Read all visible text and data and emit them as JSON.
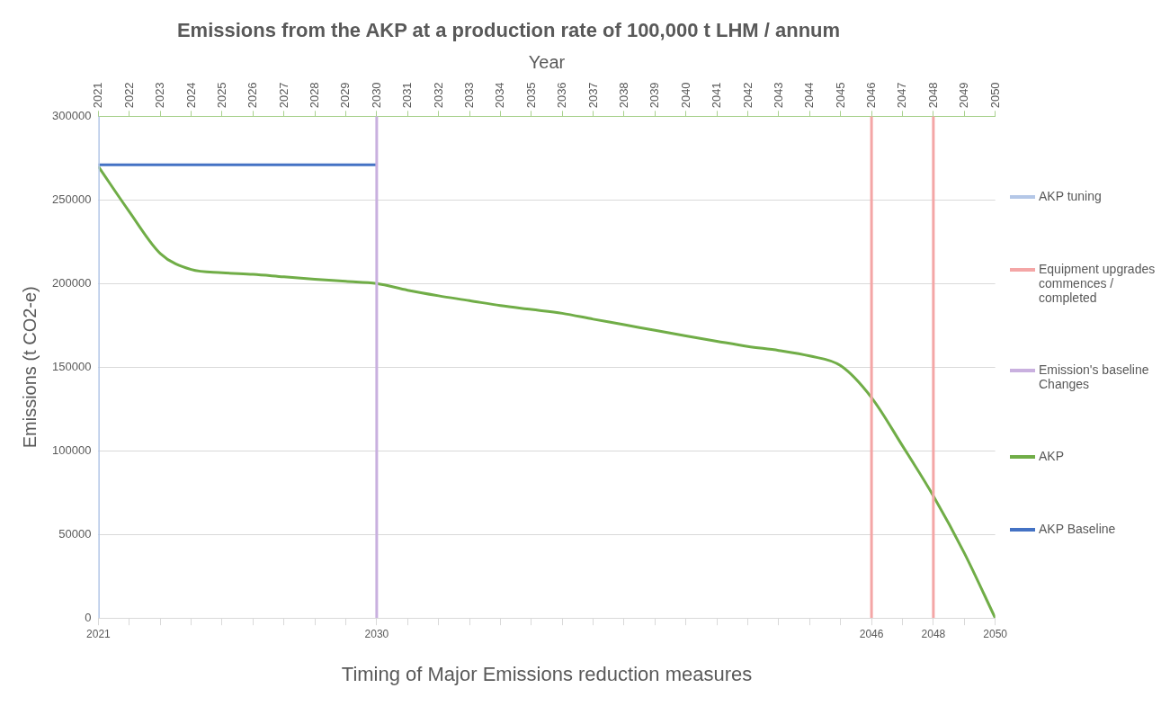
{
  "chart_data": {
    "type": "line",
    "title": "Emissions from the AKP at a production rate of 100,000 t LHM / annum",
    "xlabel": "Timing of Major Emissions reduction measures",
    "x2label": "Year",
    "ylabel": "Emissions (t CO2-e)",
    "xlim": [
      2021,
      2050
    ],
    "xticks": [
      2021,
      {
        "value": 2022,
        "label": null
      },
      {
        "value": 2023,
        "label": null
      },
      {
        "value": 2024,
        "label": null
      },
      {
        "value": 2025,
        "label": null
      },
      {
        "value": 2026,
        "label": null
      },
      {
        "value": 2027,
        "label": null
      },
      {
        "value": 2028,
        "label": null
      },
      {
        "value": 2029,
        "label": null
      },
      2030,
      {
        "value": 2031,
        "label": null
      },
      {
        "value": 2032,
        "label": null
      },
      {
        "value": 2033,
        "label": null
      },
      {
        "value": 2034,
        "label": null
      },
      {
        "value": 2035,
        "label": null
      },
      {
        "value": 2036,
        "label": null
      },
      {
        "value": 2037,
        "label": null
      },
      {
        "value": 2038,
        "label": null
      },
      {
        "value": 2039,
        "label": null
      },
      {
        "value": 2040,
        "label": null
      },
      {
        "value": 2041,
        "label": null
      },
      {
        "value": 2042,
        "label": null
      },
      {
        "value": 2043,
        "label": null
      },
      {
        "value": 2044,
        "label": null
      },
      {
        "value": 2045,
        "label": null
      },
      2046,
      {
        "value": 2047,
        "label": null
      },
      2048,
      {
        "value": 2049,
        "label": null
      },
      2050
    ],
    "x2lim": [
      2021,
      2050
    ],
    "x2ticks": [
      2021,
      2022,
      2023,
      2024,
      2025,
      2026,
      2027,
      2028,
      2029,
      2030,
      2031,
      2032,
      2033,
      2034,
      2035,
      2036,
      2037,
      2038,
      2039,
      2040,
      2041,
      2042,
      2043,
      2044,
      2045,
      2046,
      2047,
      2048,
      2049,
      2050
    ],
    "ylim": [
      0,
      300000
    ],
    "yticks": [
      0,
      50000,
      100000,
      150000,
      200000,
      250000,
      300000
    ],
    "grid": "y",
    "legend": "right",
    "marker": "none",
    "series": [
      {
        "name": "AKP tuning",
        "color": "#b4c7e7",
        "x": [
          2021,
          2021
        ],
        "values": [
          0,
          300000
        ]
      },
      {
        "name": "Equipment upgrades commences / completed",
        "color": "#f4a6a6",
        "x": [
          2046,
          2046,
          2047,
          2048,
          2048
        ],
        "values": [
          0,
          300000,
          null,
          0,
          300000
        ]
      },
      {
        "name": "Emission's baseline Changes",
        "color": "#c9b0df",
        "x": [
          2030,
          2030
        ],
        "values": [
          0,
          300000
        ]
      },
      {
        "name": "AKP",
        "color": "#70ad47",
        "x": [
          2021,
          2022,
          2023,
          2024,
          2025,
          2026,
          2027,
          2028,
          2029,
          2030,
          2031,
          2032,
          2033,
          2034,
          2035,
          2036,
          2037,
          2038,
          2039,
          2040,
          2041,
          2042,
          2043,
          2044,
          2045,
          2046,
          2047,
          2048,
          2049,
          2050
        ],
        "values": [
          270000,
          243000,
          218000,
          208400,
          206500,
          205500,
          204000,
          202600,
          201300,
          200000,
          196000,
          192700,
          189800,
          186800,
          184500,
          182200,
          178700,
          175400,
          172000,
          168700,
          165500,
          162400,
          160000,
          156700,
          150900,
          131800,
          103000,
          73000,
          38900,
          0
        ]
      },
      {
        "name": "AKP Baseline",
        "color": "#4472c4",
        "x": [
          2021,
          2030
        ],
        "values": [
          271000,
          271000
        ]
      }
    ]
  }
}
